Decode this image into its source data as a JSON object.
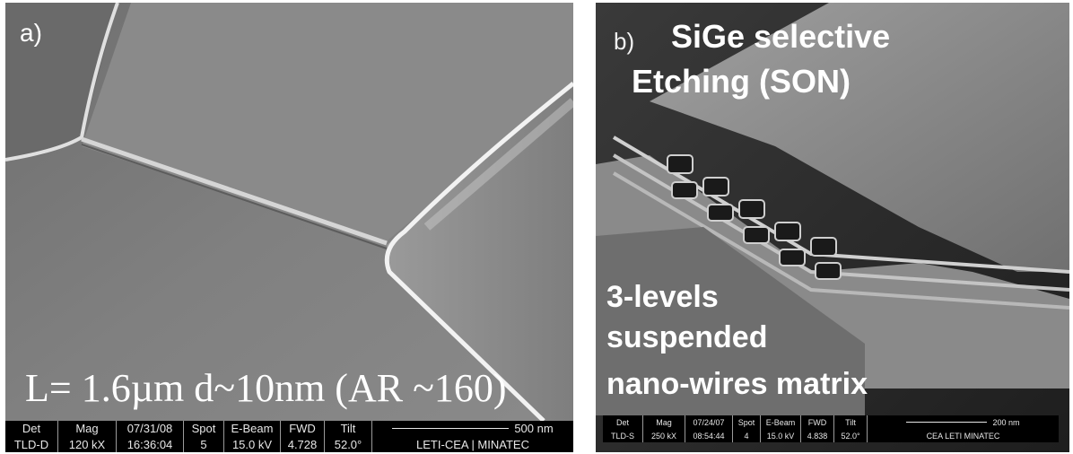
{
  "panel_a": {
    "label": "a)",
    "caption": "L= 1.6µm d~10nm (AR ~160)",
    "infobar": {
      "det": {
        "label": "Det",
        "value": "TLD-D"
      },
      "mag": {
        "label": "Mag",
        "value": "120 kX"
      },
      "date": {
        "label": "07/31/08",
        "value": "16:36:04"
      },
      "spot": {
        "label": "Spot",
        "value": "5"
      },
      "beam": {
        "label": "E-Beam",
        "value": "15.0 kV"
      },
      "fwd": {
        "label": "FWD",
        "value": "4.728"
      },
      "tilt": {
        "label": "Tilt",
        "value": "52.0°"
      },
      "scale": "500 nm",
      "lab": "LETI-CEA | MINATEC"
    }
  },
  "panel_b": {
    "label": "b)",
    "title_line1": "SiGe selective",
    "title_line2": "Etching (SON)",
    "desc_line1": "3-levels",
    "desc_line2": "suspended",
    "desc_line3": "nano-wires matrix",
    "infobar": {
      "det": {
        "label": "Det",
        "value": "TLD-S"
      },
      "mag": {
        "label": "Mag",
        "value": "250 kX"
      },
      "date": {
        "label": "07/24/07",
        "value": "08:54:44"
      },
      "spot": {
        "label": "Spot",
        "value": "4"
      },
      "beam": {
        "label": "E-Beam",
        "value": "15.0 kV"
      },
      "fwd": {
        "label": "FWD",
        "value": "4.838"
      },
      "tilt": {
        "label": "Tilt",
        "value": "52.0°"
      },
      "scale": "200 nm",
      "lab": "CEA LETI MINATEC"
    }
  }
}
